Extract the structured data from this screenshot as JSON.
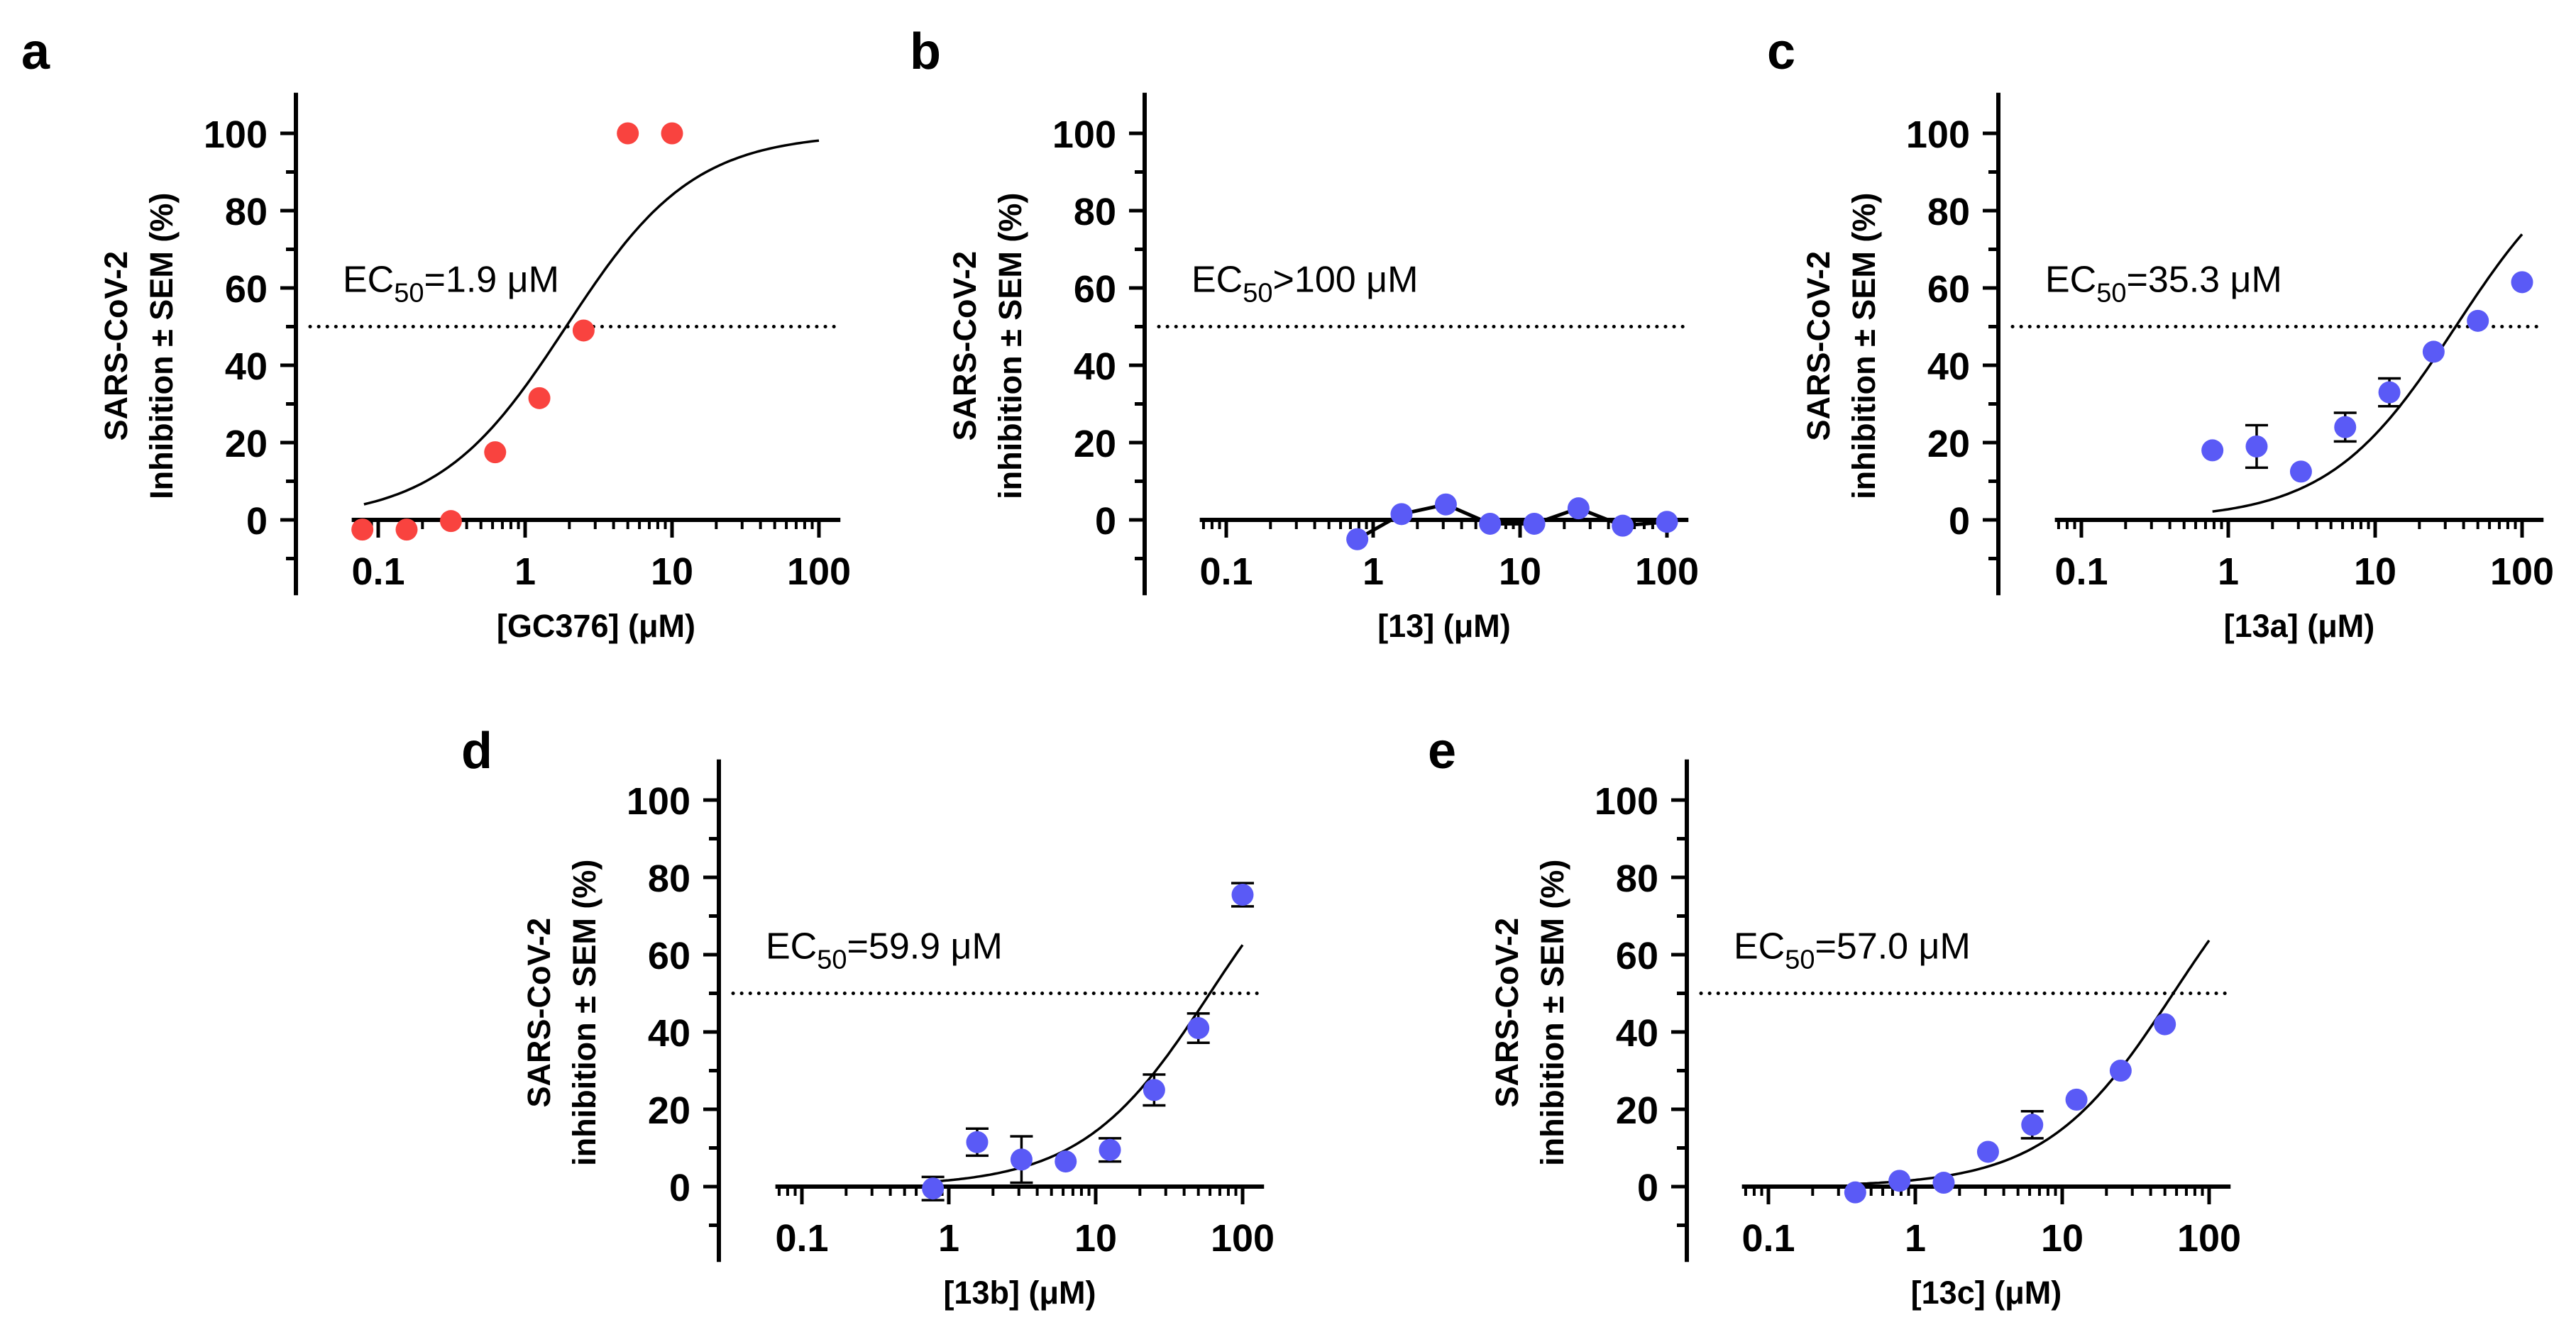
{
  "colors": {
    "red": "#F9433F",
    "blue": "#5A5AF6",
    "line": "#000000"
  },
  "chart_data": [
    {
      "panel": "a",
      "type": "scatter",
      "xlabel": "[GC376] (μM)",
      "ylabel": [
        "SARS-CoV-2",
        "Inhibition ± SEM (%)"
      ],
      "xscale": "log",
      "xlim": [
        0.066,
        140
      ],
      "ylim": [
        -19,
        110
      ],
      "xticks": [
        "0.1",
        "1",
        "10",
        "100"
      ],
      "xtick_values": [
        0.1,
        1,
        10,
        100
      ],
      "yticks": [
        "0",
        "20",
        "40",
        "60",
        "80",
        "100"
      ],
      "ytick_values": [
        0,
        20,
        40,
        60,
        80,
        100
      ],
      "ec50_label": {
        "prefix": "EC",
        "sub": "50",
        "suffix": "=1.9 μM"
      },
      "ec50": 1.9,
      "reference_line": 50,
      "marker_color": "red",
      "x": [
        0.078,
        0.156,
        0.3125,
        0.625,
        1.25,
        2.5,
        5,
        10
      ],
      "y": [
        -2.5,
        -2.5,
        -0.3,
        17.5,
        31.5,
        49,
        100,
        100
      ],
      "err": [
        0,
        0,
        0,
        0,
        0,
        0,
        0,
        0
      ],
      "fit": {
        "model": "4PL",
        "bottom": 0,
        "top": 100,
        "hill": 1.0,
        "x_range": [
          0.08,
          100
        ]
      },
      "connect_points": false
    },
    {
      "panel": "b",
      "type": "line",
      "xlabel": "[13] (μM)",
      "ylabel": [
        "SARS-CoV-2",
        "inhibition ± SEM (%)"
      ],
      "xscale": "log",
      "xlim": [
        0.066,
        140
      ],
      "ylim": [
        -19,
        110
      ],
      "xticks": [
        "0.1",
        "1",
        "10",
        "100"
      ],
      "xtick_values": [
        0.1,
        1,
        10,
        100
      ],
      "yticks": [
        "0",
        "20",
        "40",
        "60",
        "80",
        "100"
      ],
      "ytick_values": [
        0,
        20,
        40,
        60,
        80,
        100
      ],
      "ec50_label": {
        "prefix": "EC",
        "sub": "50",
        "suffix": ">100 μM"
      },
      "reference_line": 50,
      "marker_color": "blue",
      "x": [
        0.78,
        1.56,
        3.125,
        6.25,
        12.5,
        25,
        50,
        100
      ],
      "y": [
        -5,
        1.5,
        4,
        -1,
        -1,
        3,
        -1.5,
        -0.5
      ],
      "err": [
        0,
        0,
        0,
        0,
        0,
        0,
        0,
        0
      ],
      "fit": null,
      "connect_points": true
    },
    {
      "panel": "c",
      "type": "scatter",
      "xlabel": "[13a] (μM)",
      "ylabel": [
        "SARS-CoV-2",
        "inhibition ± SEM (%)"
      ],
      "xscale": "log",
      "xlim": [
        0.066,
        140
      ],
      "ylim": [
        -19,
        110
      ],
      "xticks": [
        "0.1",
        "1",
        "10",
        "100"
      ],
      "xtick_values": [
        0.1,
        1,
        10,
        100
      ],
      "yticks": [
        "0",
        "20",
        "40",
        "60",
        "80",
        "100"
      ],
      "ytick_values": [
        0,
        20,
        40,
        60,
        80,
        100
      ],
      "ec50_label": {
        "prefix": "EC",
        "sub": "50",
        "suffix": "=35.3 μM"
      },
      "ec50": 35.3,
      "reference_line": 50,
      "marker_color": "blue",
      "x": [
        0.78,
        1.56,
        3.125,
        6.25,
        12.5,
        25,
        50,
        100
      ],
      "y": [
        18,
        19,
        12.5,
        24,
        33,
        43.5,
        51.5,
        61.5
      ],
      "err": [
        0,
        5.5,
        0,
        3.7,
        3.6,
        0,
        0,
        0
      ],
      "fit": {
        "model": "4PL",
        "bottom": 0,
        "top": 100,
        "hill": 1.0,
        "x_range": [
          0.78,
          100
        ]
      },
      "connect_points": false
    },
    {
      "panel": "d",
      "type": "scatter",
      "xlabel": "[13b] (μM)",
      "ylabel": [
        "SARS-CoV-2",
        "inhibition ± SEM (%)"
      ],
      "xscale": "log",
      "xlim": [
        0.066,
        140
      ],
      "ylim": [
        -19,
        110
      ],
      "xticks": [
        "0.1",
        "1",
        "10",
        "100"
      ],
      "xtick_values": [
        0.1,
        1,
        10,
        100
      ],
      "yticks": [
        "0",
        "20",
        "40",
        "60",
        "80",
        "100"
      ],
      "ytick_values": [
        0,
        20,
        40,
        60,
        80,
        100
      ],
      "ec50_label": {
        "prefix": "EC",
        "sub": "50",
        "suffix": "=59.9 μM"
      },
      "ec50": 59.9,
      "reference_line": 50,
      "marker_color": "blue",
      "x": [
        0.78,
        1.56,
        3.125,
        6.25,
        12.5,
        25,
        50,
        100
      ],
      "y": [
        -0.5,
        11.5,
        7,
        6.5,
        9.5,
        25,
        41,
        75.5
      ],
      "err": [
        3,
        3.5,
        6,
        0,
        3,
        4,
        3.8,
        3
      ],
      "fit": {
        "model": "4PL",
        "bottom": 0,
        "top": 100,
        "hill": 1.0,
        "x_range": [
          0.78,
          100
        ]
      },
      "connect_points": false
    },
    {
      "panel": "e",
      "type": "scatter",
      "xlabel": "[13c] (μM)",
      "ylabel": [
        "SARS-CoV-2",
        "inhibition ± SEM (%)"
      ],
      "xscale": "log",
      "xlim": [
        0.066,
        140
      ],
      "ylim": [
        -19,
        110
      ],
      "xticks": [
        "0.1",
        "1",
        "10",
        "100"
      ],
      "xtick_values": [
        0.1,
        1,
        10,
        100
      ],
      "yticks": [
        "0",
        "20",
        "40",
        "60",
        "80",
        "100"
      ],
      "ytick_values": [
        0,
        20,
        40,
        60,
        80,
        100
      ],
      "ec50_label": {
        "prefix": "EC",
        "sub": "50",
        "suffix": "=57.0 μM"
      },
      "ec50": 57.0,
      "reference_line": 50,
      "marker_color": "blue",
      "x": [
        0.39,
        0.78,
        1.56,
        3.125,
        6.25,
        12.5,
        25,
        50
      ],
      "y": [
        -1.5,
        1.5,
        1,
        9,
        16,
        22.5,
        30,
        42
      ],
      "err": [
        0,
        0,
        0,
        0,
        3.5,
        0,
        0,
        0
      ],
      "fit": {
        "model": "4PL",
        "bottom": 0,
        "top": 100,
        "hill": 1.0,
        "x_range": [
          0.39,
          100
        ]
      },
      "connect_points": false
    }
  ]
}
